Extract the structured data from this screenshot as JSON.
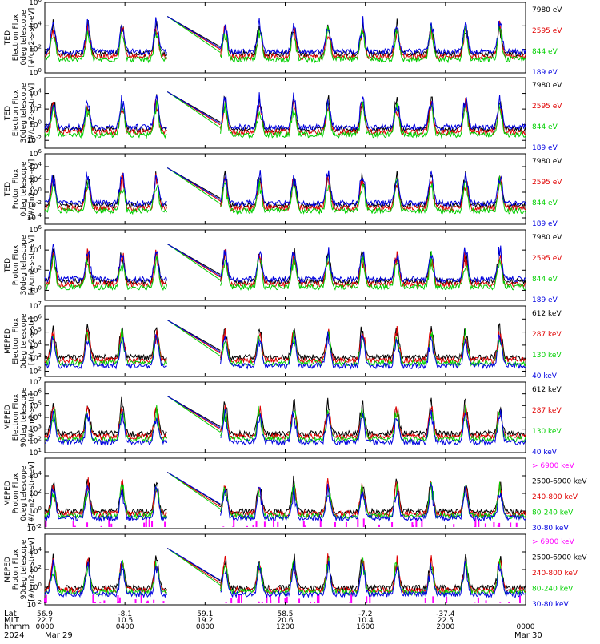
{
  "colors": {
    "black": "#000000",
    "red": "#e00000",
    "green": "#00d000",
    "blue": "#0000e0",
    "magenta": "#ff00ff"
  },
  "x_axis": {
    "ticks": [
      {
        "lat": "56.9",
        "mlt": "22.7",
        "hhmm": "0000"
      },
      {
        "lat": "-8.1",
        "mlt": "10.5",
        "hhmm": "0400"
      },
      {
        "lat": "59.1",
        "mlt": "19.2",
        "hhmm": "0800"
      },
      {
        "lat": "58.5",
        "mlt": "20.6",
        "hhmm": "1200"
      },
      {
        "lat": "-7.2",
        "mlt": "10.4",
        "hhmm": "1600"
      },
      {
        "lat": "-37.4",
        "mlt": "22.5",
        "hhmm": "2000"
      },
      {
        "lat": "",
        "mlt": "",
        "hhmm": "0000"
      }
    ],
    "row_labels": [
      "Lat",
      "MLT",
      "hhmm",
      "2024"
    ],
    "start_date": "Mar 29",
    "end_date": "Mar 30"
  },
  "chart_data": [
    {
      "type": "line",
      "ylabel": [
        "TED",
        "Electron Flux",
        "0deg telescope",
        "[#/cm2-s-str-eV]"
      ],
      "yticks": [
        "10^0",
        "10^2",
        "10^4",
        "10^6"
      ],
      "ylim": [
        0,
        6
      ],
      "series": [
        {
          "name": "7980 eV",
          "color": "#000000"
        },
        {
          "name": "2595 eV",
          "color": "#e00000"
        },
        {
          "name": "844 eV",
          "color": "#00d000"
        },
        {
          "name": "189 eV",
          "color": "#0000e0"
        }
      ]
    },
    {
      "type": "line",
      "ylabel": [
        "TED",
        "Electron Flux",
        "30deg telescope",
        "[#/cm2-s-str-eV]"
      ],
      "yticks": [
        "10^-2",
        "10^0",
        "10^2",
        "10^4"
      ],
      "ylim": [
        -3,
        6
      ],
      "series": [
        {
          "name": "7980 eV",
          "color": "#000000"
        },
        {
          "name": "2595 eV",
          "color": "#e00000"
        },
        {
          "name": "844 eV",
          "color": "#00d000"
        },
        {
          "name": "189 eV",
          "color": "#0000e0"
        }
      ]
    },
    {
      "type": "line",
      "ylabel": [
        "TED",
        "Proton Flux",
        "0deg telescope",
        "[#/cm2-s-str-eV]"
      ],
      "yticks": [
        "10^-4",
        "10^-2",
        "10^0",
        "10^2",
        "10^4",
        "10^6"
      ],
      "ylim": [
        -5,
        6
      ],
      "series": [
        {
          "name": "7980 eV",
          "color": "#000000"
        },
        {
          "name": "2595 eV",
          "color": "#e00000"
        },
        {
          "name": "844 eV",
          "color": "#00d000"
        },
        {
          "name": "189 eV",
          "color": "#0000e0"
        }
      ]
    },
    {
      "type": "line",
      "ylabel": [
        "TED",
        "Proton Flux",
        "30deg telescope",
        "[#/cm2-s-str-eV]"
      ],
      "yticks": [
        "10^0",
        "10^2",
        "10^4",
        "10^6"
      ],
      "ylim": [
        -1,
        6
      ],
      "series": [
        {
          "name": "7980 eV",
          "color": "#000000"
        },
        {
          "name": "2595 eV",
          "color": "#e00000"
        },
        {
          "name": "844 eV",
          "color": "#00d000"
        },
        {
          "name": "189 eV",
          "color": "#0000e0"
        }
      ]
    },
    {
      "type": "line",
      "ylabel": [
        "MEPED",
        "Electron Flux",
        "0deg telescope",
        "[#/cm2-s-str]"
      ],
      "yticks": [
        "10^2",
        "10^3",
        "10^4",
        "10^5",
        "10^6",
        "10^7"
      ],
      "ylim": [
        1.6,
        7
      ],
      "series": [
        {
          "name": "612 keV",
          "color": "#000000"
        },
        {
          "name": "287 keV",
          "color": "#e00000"
        },
        {
          "name": "130 keV",
          "color": "#00d000"
        },
        {
          "name": "40 keV",
          "color": "#0000e0"
        }
      ]
    },
    {
      "type": "line",
      "ylabel": [
        "MEPED",
        "Electron Flux",
        "90deg telescope",
        "[#/cm2-s-str]"
      ],
      "yticks": [
        "10^1",
        "10^2",
        "10^3",
        "10^4",
        "10^5",
        "10^6",
        "10^7"
      ],
      "ylim": [
        1,
        7
      ],
      "series": [
        {
          "name": "612 keV",
          "color": "#000000"
        },
        {
          "name": "287 keV",
          "color": "#e00000"
        },
        {
          "name": "130 keV",
          "color": "#00d000"
        },
        {
          "name": "40 keV",
          "color": "#0000e0"
        }
      ]
    },
    {
      "type": "line",
      "ylabel": [
        "MEPED",
        "Proton Flux",
        "0deg telescope",
        "[#/cm2-s-str-keV]"
      ],
      "yticks": [
        "10^-2",
        "10^0",
        "10^2",
        "10^4"
      ],
      "ylim": [
        -2,
        6
      ],
      "series": [
        {
          "name": "> 6900 keV",
          "color": "#ff00ff"
        },
        {
          "name": "2500-6900 keV",
          "color": "#000000"
        },
        {
          "name": "240-800 keV",
          "color": "#e00000"
        },
        {
          "name": "80-240 keV",
          "color": "#00d000"
        },
        {
          "name": "30-80 keV",
          "color": "#0000e0"
        }
      ]
    },
    {
      "type": "line",
      "ylabel": [
        "MEPED",
        "Proton Flux",
        "90deg telescope",
        "[#/cm2-s-str-keV]"
      ],
      "yticks": [
        "10^-2",
        "10^0",
        "10^2",
        "10^4"
      ],
      "ylim": [
        -2,
        6
      ],
      "series": [
        {
          "name": "> 6900 keV",
          "color": "#ff00ff"
        },
        {
          "name": "2500-6900 keV",
          "color": "#000000"
        },
        {
          "name": "240-800 keV",
          "color": "#e00000"
        },
        {
          "name": "80-240 keV",
          "color": "#00d000"
        },
        {
          "name": "30-80 keV",
          "color": "#0000e0"
        }
      ]
    }
  ]
}
